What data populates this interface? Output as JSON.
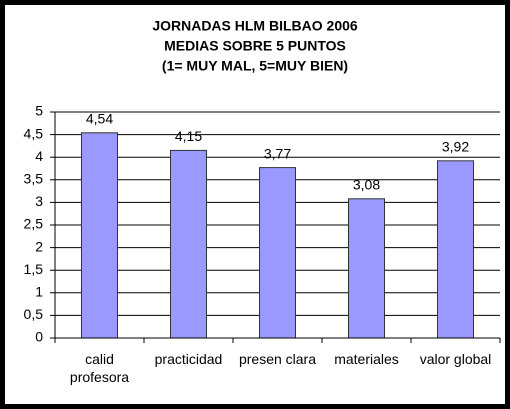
{
  "chart_data": {
    "type": "bar",
    "title": [
      "JORNADAS HLM BILBAO 2006",
      "MEDIAS SOBRE 5 PUNTOS",
      "(1= MUY MAL, 5=MUY BIEN)"
    ],
    "categories": [
      "calid profesora",
      "practicidad",
      "presen clara",
      "materiales",
      "valor global"
    ],
    "values": [
      4.54,
      4.15,
      3.77,
      3.08,
      3.92
    ],
    "value_labels": [
      "4,54",
      "4,15",
      "3,77",
      "3,08",
      "3,92"
    ],
    "color": "#9999ff",
    "ylim": [
      0,
      5
    ],
    "yticks": [
      0,
      {
        "value": 0.5,
        "label": "0,5"
      },
      1,
      {
        "value": 1.5,
        "label": "1,5"
      },
      2,
      {
        "value": 2.5,
        "label": "2,5"
      },
      3,
      {
        "value": 3.5,
        "label": "3,5"
      },
      4,
      {
        "value": 4.5,
        "label": "4,5"
      },
      5
    ],
    "grid": true
  }
}
